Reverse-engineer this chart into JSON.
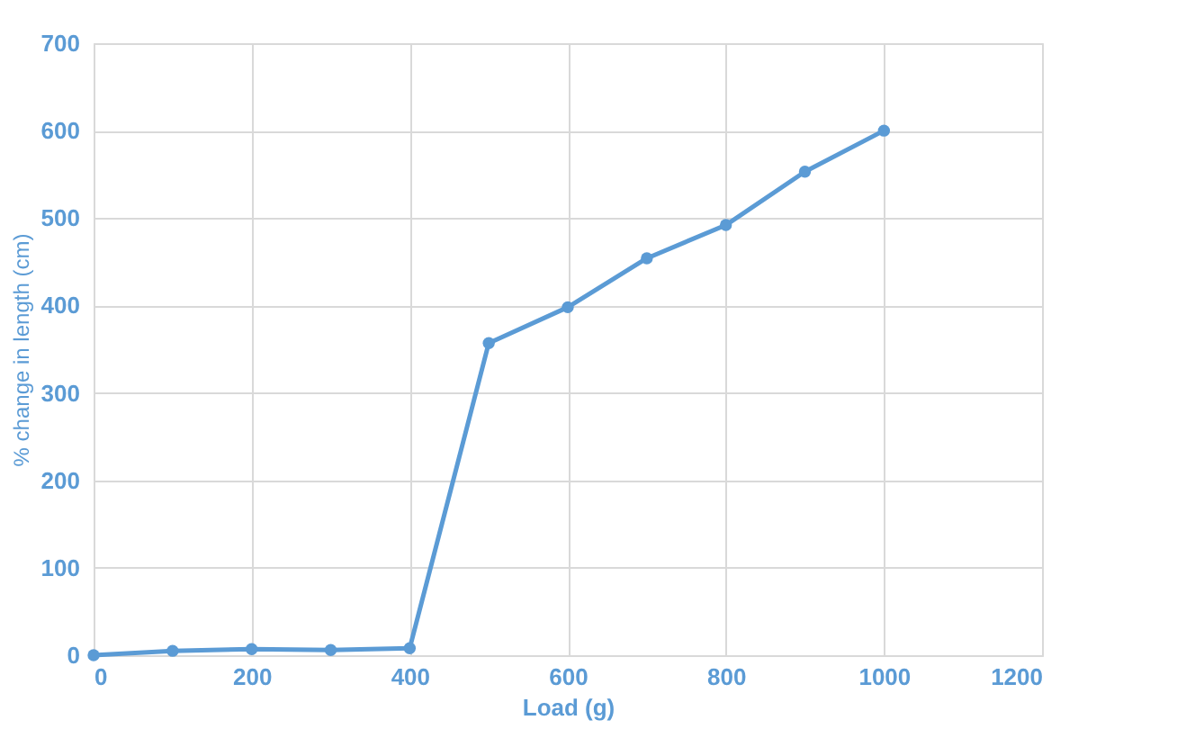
{
  "chart_data": {
    "type": "line",
    "xlabel": "Load (g)",
    "ylabel": "% change in length (cm)",
    "x": [
      0,
      100,
      200,
      300,
      400,
      500,
      600,
      700,
      800,
      900,
      1000
    ],
    "series": [
      {
        "color": "#5b9bd5",
        "values": [
          0,
          5,
          7,
          6,
          8,
          357,
          398,
          454,
          492,
          553,
          600
        ]
      }
    ],
    "xlim": [
      0,
      1200
    ],
    "xticks": [
      0,
      200,
      400,
      600,
      800,
      1000,
      1200
    ],
    "ylim": [
      0,
      700
    ],
    "yticks": [
      0,
      100,
      200,
      300,
      400,
      500,
      600,
      700
    ],
    "grid": true,
    "marker": "circle",
    "line_style": "solid"
  }
}
